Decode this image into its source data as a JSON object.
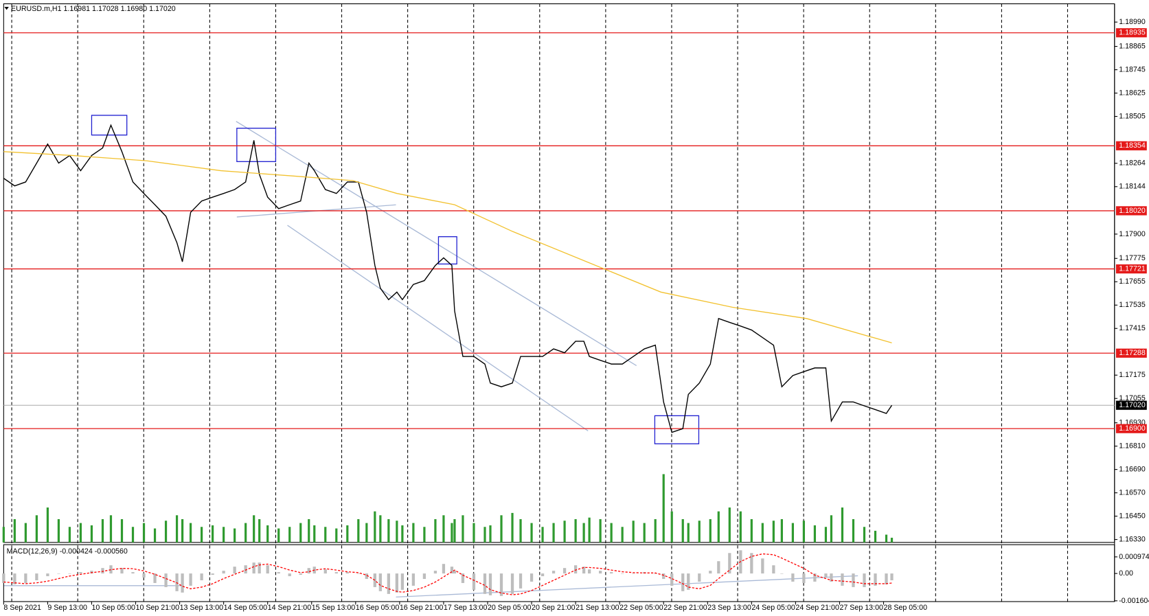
{
  "chart_data": [
    {
      "type": "line",
      "title": "EURUSD.m,H1  1.16981 1.17028 1.16980 1.17020",
      "x": [
        0,
        4,
        8,
        12,
        16,
        20,
        24,
        28,
        32,
        36,
        39,
        43,
        47,
        51,
        55,
        59,
        63,
        65,
        68,
        72,
        76,
        80,
        84,
        88,
        91,
        93,
        96,
        100,
        104,
        108,
        111,
        113,
        117,
        121,
        125,
        129,
        132,
        135,
        137,
        140,
        143,
        145,
        149,
        153,
        157,
        160,
        163,
        164,
        167,
        171,
        175,
        177,
        181,
        185,
        188,
        192,
        196,
        200,
        204,
        208,
        211,
        213,
        217,
        221,
        225,
        229,
        233,
        237,
        240,
        243,
        247,
        249,
        253,
        257,
        260,
        264,
        268,
        272,
        276,
        280,
        283,
        287,
        291,
        295,
        299,
        301,
        305,
        309,
        313,
        317,
        321,
        323
      ],
      "series": [
        {
          "color": "#000000",
          "values": [
            1.18187,
            1.18148,
            1.18168,
            1.18265,
            1.18363,
            1.18265,
            1.18304,
            1.18226,
            1.18304,
            1.18343,
            1.1846,
            1.18324,
            1.18168,
            1.18109,
            1.18051,
            1.17992,
            1.17856,
            1.17758,
            1.18012,
            1.1807,
            1.1809,
            1.18109,
            1.18129,
            1.18168,
            1.18382,
            1.18207,
            1.1809,
            1.18031,
            1.18051,
            1.1807,
            1.18265,
            1.18226,
            1.18129,
            1.18109,
            1.18168,
            1.18168,
            1.18012,
            1.17739,
            1.17622,
            1.17563,
            1.17602,
            1.17563,
            1.17641,
            1.17661,
            1.17739,
            1.17778,
            1.17739,
            1.17505,
            1.17271,
            1.17271,
            1.17232,
            1.17134,
            1.17115,
            1.17134,
            1.17271,
            1.17271,
            1.17271,
            1.1731,
            1.1729,
            1.17349,
            1.17349,
            1.17271,
            1.17251,
            1.17232,
            1.17232,
            1.17271,
            1.1731,
            1.17329,
            1.17037,
            1.16881,
            1.169,
            1.17076,
            1.17134,
            1.17232,
            1.17466,
            1.17446,
            1.17427,
            1.17407,
            1.17368,
            1.17329,
            1.17115,
            1.17173,
            1.17193,
            1.17212,
            1.17212,
            1.16939,
            1.17037,
            1.17037,
            1.17017,
            1.16998,
            1.16978,
            1.1702
          ]
        },
        {
          "color": "#f2c12e",
          "x": [
            0,
            25,
            52,
            79,
            105,
            127,
            143,
            164,
            185,
            212,
            239,
            265,
            292,
            323
          ],
          "values": [
            1.18324,
            1.18304,
            1.18277,
            1.18226,
            1.18199,
            1.18175,
            1.18109,
            1.18051,
            1.17914,
            1.17758,
            1.17602,
            1.17524,
            1.17466,
            1.17341
          ]
        }
      ],
      "volume": {
        "color": "#2f9a2f",
        "values": [
          20,
          30,
          25,
          35,
          45,
          30,
          20,
          25,
          22,
          30,
          35,
          30,
          20,
          25,
          18,
          28,
          35,
          30,
          25,
          20,
          22,
          20,
          18,
          25,
          35,
          30,
          22,
          18,
          20,
          25,
          30,
          22,
          20,
          18,
          22,
          30,
          25,
          40,
          35,
          30,
          28,
          22,
          25,
          20,
          30,
          35,
          25,
          30,
          35,
          25,
          20,
          22,
          35,
          38,
          30,
          25,
          20,
          25,
          28,
          30,
          25,
          32,
          30,
          25,
          20,
          28,
          25,
          30,
          88,
          40,
          30,
          25,
          28,
          30,
          40,
          45,
          40,
          30,
          25,
          28,
          30,
          25,
          28,
          22,
          20,
          35,
          45,
          30,
          20,
          15,
          10,
          6
        ]
      },
      "levels": [
        1.18935,
        1.18354,
        {
          "value": 1.1802,
          "label": "1.18020"
        },
        1.17721,
        1.17288,
        {
          "value": 1.169,
          "label": "1.16900"
        }
      ],
      "level_color": "#e41a1a",
      "current_price": {
        "value": 1.1702,
        "label": "1.17020"
      },
      "xlim": [
        0,
        404
      ],
      "ylim": [
        1.16315,
        1.19084
      ],
      "yticks": [
        {
          "value": 1.1899,
          "label": "1.18990"
        },
        1.18865,
        1.18745,
        1.18625,
        1.18505,
        1.18264,
        1.18144,
        {
          "value": 1.179,
          "label": "1.17900"
        },
        1.17775,
        1.17655,
        1.17535,
        1.17415,
        1.17175,
        1.17055,
        {
          "value": 1.1693,
          "label": "1.16930"
        },
        {
          "value": 1.1681,
          "label": "1.16810"
        },
        {
          "value": 1.1669,
          "label": "1.16690"
        },
        {
          "value": 1.1657,
          "label": "1.16570"
        },
        {
          "value": 1.1645,
          "label": "1.16450"
        },
        {
          "value": 1.1633,
          "label": "1.16330"
        }
      ],
      "xticks": [
        {
          "value": 0,
          "label": "8 Sep 2021"
        },
        {
          "value": 16,
          "label": "9 Sep 13:00"
        },
        {
          "value": 32,
          "label": "10 Sep 05:00"
        },
        {
          "value": 48,
          "label": "10 Sep 21:00"
        },
        {
          "value": 64,
          "label": "13 Sep 13:00"
        },
        {
          "value": 80,
          "label": "14 Sep 05:00"
        },
        {
          "value": 96,
          "label": "14 Sep 21:00"
        },
        {
          "value": 112,
          "label": "15 Sep 13:00"
        },
        {
          "value": 128,
          "label": "16 Sep 05:00"
        },
        {
          "value": 144,
          "label": "16 Sep 21:00"
        },
        {
          "value": 160,
          "label": "17 Sep 13:00"
        },
        {
          "value": 176,
          "label": "20 Sep 05:00"
        },
        {
          "value": 192,
          "label": "20 Sep 21:00"
        },
        {
          "value": 208,
          "label": "21 Sep 13:00"
        },
        {
          "value": 224,
          "label": "22 Sep 05:00"
        },
        {
          "value": 240,
          "label": "22 Sep 21:00"
        },
        {
          "value": 256,
          "label": "23 Sep 13:00"
        },
        {
          "value": 272,
          "label": "24 Sep 05:00"
        },
        {
          "value": 288,
          "label": "24 Sep 21:00"
        },
        {
          "value": 304,
          "label": "27 Sep 13:00"
        },
        {
          "value": 320,
          "label": "28 Sep 05:00"
        }
      ]
    },
    {
      "type": "macd",
      "title": "MACD(12,26,9) -0.000424 -0.000560",
      "x": [
        0,
        4,
        8,
        12,
        16,
        20,
        24,
        28,
        32,
        36,
        39,
        43,
        47,
        51,
        55,
        59,
        63,
        65,
        68,
        72,
        76,
        80,
        84,
        88,
        91,
        93,
        96,
        100,
        104,
        108,
        111,
        113,
        117,
        121,
        125,
        129,
        132,
        135,
        137,
        140,
        143,
        145,
        149,
        153,
        157,
        160,
        163,
        164,
        167,
        171,
        175,
        177,
        181,
        185,
        188,
        192,
        196,
        200,
        204,
        208,
        211,
        213,
        217,
        221,
        225,
        229,
        233,
        237,
        240,
        243,
        247,
        249,
        253,
        257,
        260,
        264,
        268,
        272,
        276,
        280,
        283,
        287,
        291,
        295,
        299,
        301,
        305,
        309,
        313,
        317,
        321,
        323
      ],
      "series": [
        {
          "type": "bar",
          "color": "#bdbdbd",
          "values": [
            -0.00056,
            -0.00064,
            -0.00056,
            -0.0004,
            -0.00016,
            0,
            0,
            8e-05,
            0.00016,
            0.00032,
            0.00048,
            0.00032,
            8e-05,
            -0.00024,
            -0.00056,
            -0.0008,
            -0.00104,
            -0.00112,
            -0.00072,
            -0.0004,
            -8e-05,
            0.00016,
            0.0004,
            0.00048,
            0.00064,
            0.00064,
            0.00048,
            8e-05,
            -0.00016,
            -8e-05,
            0.00032,
            0.0004,
            0.00024,
            8e-05,
            8e-05,
            0,
            -0.00032,
            -0.0008,
            -0.00104,
            -0.0012,
            -0.00112,
            -0.00096,
            -0.00072,
            -0.00032,
            0.00016,
            0.00056,
            0.0004,
            0.00016,
            -0.00056,
            -0.00096,
            -0.0012,
            -0.00128,
            -0.00132,
            -0.0012,
            -0.00088,
            -0.00048,
            -0.00016,
            0.00016,
            0.00032,
            0.00048,
            0.0004,
            0.00024,
            0.00016,
            8e-05,
            0,
            0,
            8e-05,
            0,
            -0.00032,
            -0.00072,
            -0.00104,
            -0.00096,
            -0.00048,
            0.00016,
            0.00072,
            0.0012,
            0.00136,
            0.0012,
            0.00088,
            0.00048,
            0,
            -0.00048,
            -0.00056,
            -0.00048,
            -0.00024,
            -0.00048,
            -0.00072,
            -0.0008,
            -0.0008,
            -0.00072,
            -0.00064,
            -0.0004
          ]
        },
        {
          "color": "#ff0000",
          "dashed": true,
          "values": [
            -0.0005,
            -0.00055,
            -0.0006,
            -0.00055,
            -0.00045,
            -0.0003,
            -0.00015,
            -5e-05,
            5e-05,
            0.00012,
            0.00022,
            0.0003,
            0.00028,
            0.00015,
            -5e-05,
            -0.0003,
            -0.00055,
            -0.00075,
            -0.0009,
            -0.0008,
            -0.0006,
            -0.0003,
            -5e-05,
            0.0002,
            0.0004,
            0.0005,
            0.00055,
            0.0004,
            0.0002,
            5e-05,
            0.0001,
            0.0002,
            0.00028,
            0.0002,
            0.0001,
            5e-05,
            -0.0001,
            -0.0004,
            -0.0007,
            -0.0009,
            -0.00105,
            -0.0011,
            -0.001,
            -0.0008,
            -0.0005,
            -0.0002,
            0.0001,
            0.0002,
            -0.0001,
            -0.0004,
            -0.0007,
            -0.00095,
            -0.00115,
            -0.00125,
            -0.0012,
            -0.001,
            -0.0007,
            -0.0004,
            -0.0001,
            0.0002,
            0.00035,
            0.00035,
            0.0003,
            0.0002,
            0.0001,
            5e-05,
            3e-05,
            3e-05,
            -0.0001,
            -0.0003,
            -0.0006,
            -0.0008,
            -0.0009,
            -0.0007,
            -0.0003,
            0.0002,
            0.0007,
            0.001,
            0.00115,
            0.0011,
            0.0009,
            0.0006,
            0.0003,
            -0.0001,
            -0.0003,
            -0.0004,
            -0.00045,
            -0.0005,
            -0.0006,
            -0.0006,
            -0.0006,
            -0.00056
          ]
        }
      ],
      "xlim": [
        0,
        404
      ],
      "ylim": [
        -0.00165,
        0.0016
      ],
      "yticks": [
        0.000974,
        {
          "value": 0,
          "label": "0.00"
        },
        -0.001604
      ]
    }
  ]
}
